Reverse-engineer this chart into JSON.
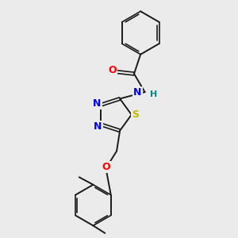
{
  "background_color": "#ebebeb",
  "bond_color": "#1a1a1a",
  "atom_colors": {
    "N": "#0000ee",
    "O": "#ff0000",
    "S": "#bbbb00",
    "H": "#008888",
    "C": "#1a1a1a"
  },
  "figsize": [
    3.0,
    3.0
  ],
  "dpi": 100
}
